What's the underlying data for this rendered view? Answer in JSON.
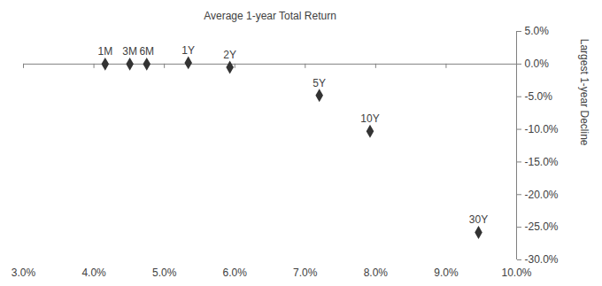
{
  "chart_data": {
    "type": "scatter",
    "xlabel": "Average 1-year Total Return",
    "ylabel": "Largest 1-year Decline",
    "points": [
      {
        "label": "1M",
        "x": 4.16,
        "y": 0.0
      },
      {
        "label": "3M",
        "x": 4.51,
        "y": 0.0
      },
      {
        "label": "6M",
        "x": 4.75,
        "y": 0.0
      },
      {
        "label": "1Y",
        "x": 5.34,
        "y": 0.2
      },
      {
        "label": "2Y",
        "x": 5.93,
        "y": -0.5
      },
      {
        "label": "5Y",
        "x": 7.2,
        "y": -4.8
      },
      {
        "label": "10Y",
        "x": 7.92,
        "y": -10.3
      },
      {
        "label": "30Y",
        "x": 9.46,
        "y": -25.8
      }
    ],
    "color": "#333333",
    "marker": "diamond",
    "xlim": [
      3,
      10
    ],
    "xticks": [
      {
        "value": 3,
        "label": "3.0%"
      },
      {
        "value": 4,
        "label": "4.0%"
      },
      {
        "value": 5,
        "label": "5.0%"
      },
      {
        "value": 6,
        "label": "6.0%"
      },
      {
        "value": 7,
        "label": "7.0%"
      },
      {
        "value": 8,
        "label": "8.0%"
      },
      {
        "value": 9,
        "label": "9.0%"
      },
      {
        "value": 10,
        "label": "10.0%"
      }
    ],
    "ylim": [
      -30,
      5
    ],
    "yticks": [
      {
        "value": 5,
        "label": "5.0%"
      },
      {
        "value": 0,
        "label": "0.0%"
      },
      {
        "value": -5,
        "label": "-5.0%"
      },
      {
        "value": -10,
        "label": "-10.0%"
      },
      {
        "value": -15,
        "label": "-15.0%"
      },
      {
        "value": -20,
        "label": "-20.0%"
      },
      {
        "value": -25,
        "label": "-25.0%"
      },
      {
        "value": -30,
        "label": "-30.0%"
      }
    ],
    "grid": false
  }
}
